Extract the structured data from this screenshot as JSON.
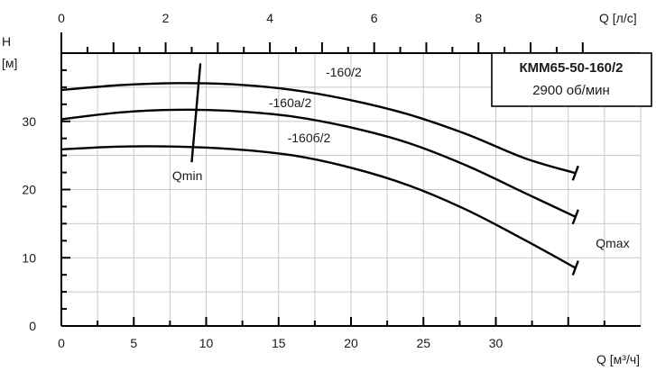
{
  "chart_data": {
    "type": "line",
    "title": "КММ65-50-160/2",
    "subtitle": "2900 об/мин",
    "ylabel_top": "H",
    "ylabel_unit": "[м]",
    "xlabel": "Q [м³/ч]",
    "x2label": "Q [л/с]",
    "xlim": [
      0,
      40
    ],
    "ylim": [
      0,
      40
    ],
    "x2lim": [
      0,
      11.111
    ],
    "xticks": [
      0,
      5,
      10,
      15,
      20,
      25,
      30
    ],
    "x2ticks": [
      0,
      2,
      4,
      6,
      8
    ],
    "yticks": [
      0,
      10,
      20,
      30
    ],
    "grid": true,
    "series": [
      {
        "name": "-160/2",
        "label_at": [
          19.5,
          36.6
        ],
        "x": [
          0,
          4,
          8,
          12,
          16,
          20,
          24,
          28,
          32,
          35.5
        ],
        "y": [
          34.6,
          35.3,
          35.6,
          35.4,
          34.6,
          33.1,
          31.0,
          28.1,
          24.6,
          22.4
        ]
      },
      {
        "name": "-160a/2",
        "label_at": [
          15.8,
          32.1
        ],
        "x": [
          0,
          4,
          8,
          12,
          16,
          20,
          24,
          28,
          32,
          35.5
        ],
        "y": [
          30.3,
          31.3,
          31.7,
          31.5,
          30.7,
          29.1,
          26.8,
          23.5,
          19.5,
          16.0
        ]
      },
      {
        "name": "-160б/2",
        "label_at": [
          17.1,
          26.9
        ],
        "x": [
          0,
          4,
          8,
          12,
          16,
          20,
          24,
          28,
          32,
          35.5
        ],
        "y": [
          25.9,
          26.3,
          26.3,
          25.9,
          25.0,
          23.2,
          20.6,
          17.0,
          12.6,
          8.5
        ]
      }
    ],
    "annotations": {
      "qmin": {
        "label": "Qmin",
        "label_at": [
          8.7,
          21.4
        ],
        "line_from": [
          9.0,
          24.0
        ],
        "line_to": [
          9.6,
          38.5
        ]
      },
      "qmax": {
        "label": "Qmax",
        "label_at": [
          36.9,
          11.5
        ]
      }
    }
  }
}
